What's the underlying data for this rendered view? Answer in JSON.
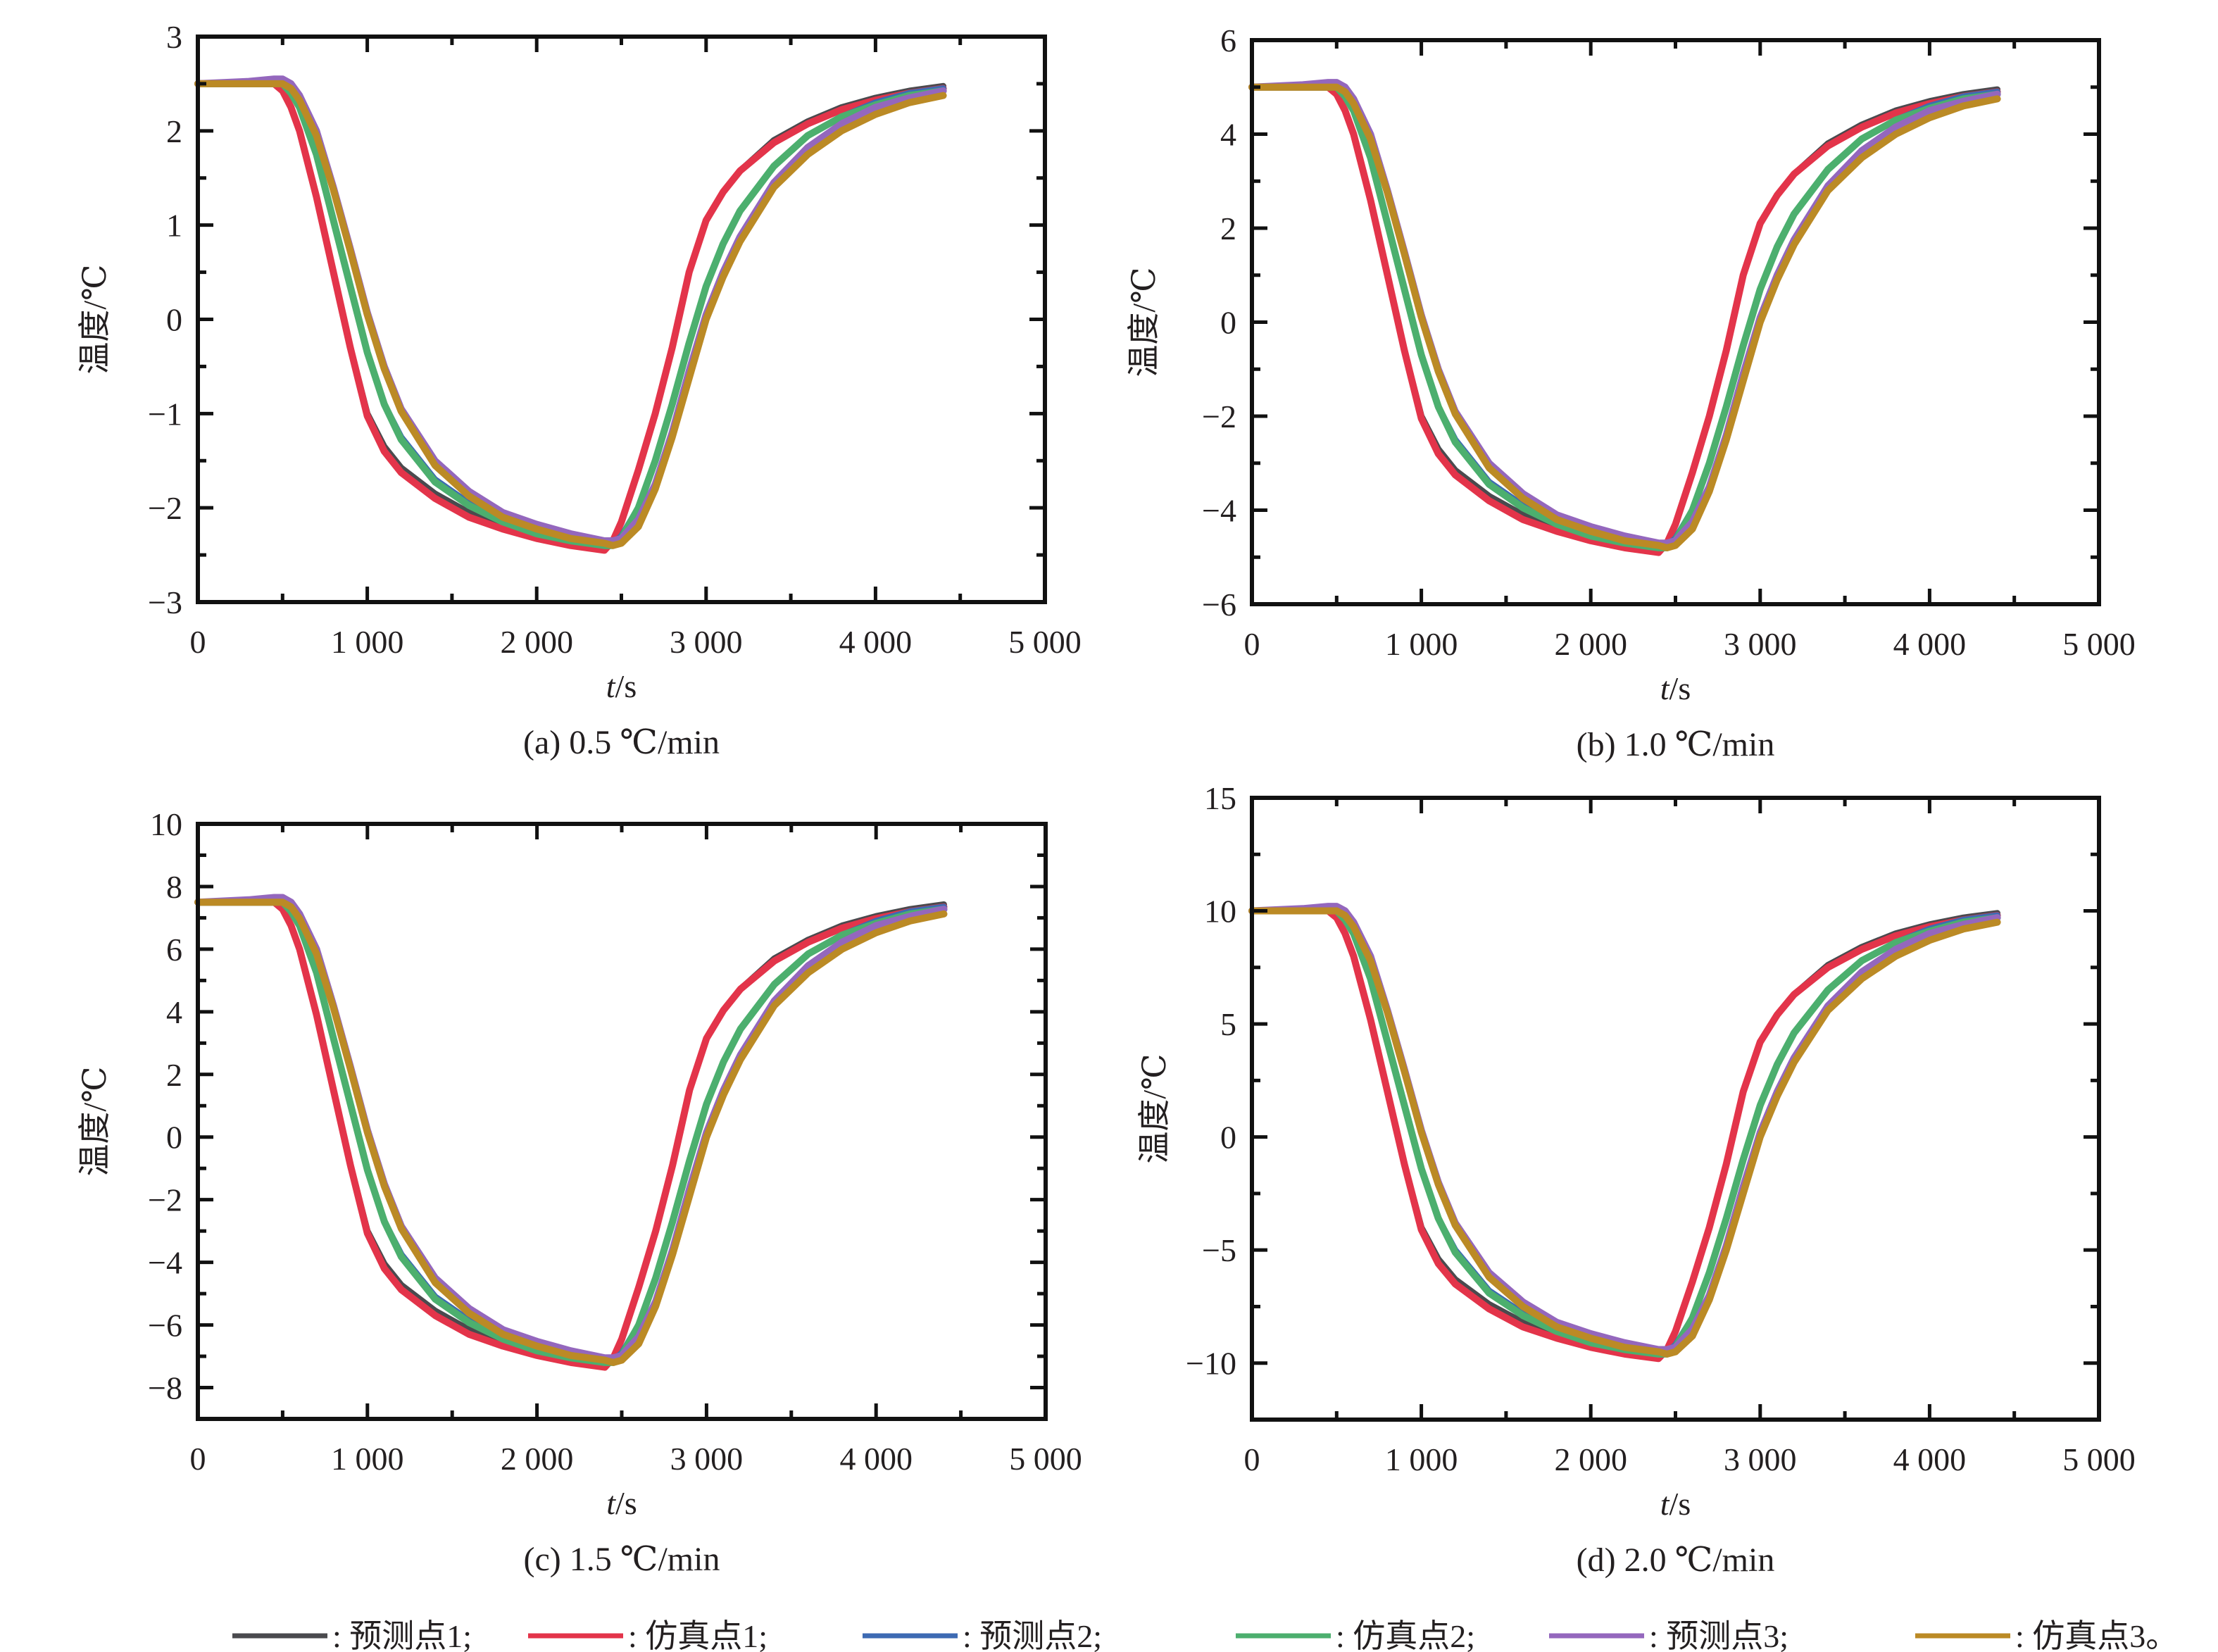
{
  "chart_data": {
    "type": "line",
    "legend": {
      "placement": "bottom",
      "entries": [
        {
          "key": "pred1",
          "label": "预测点1;",
          "color": "#4a4a4e"
        },
        {
          "key": "sim1",
          "label": "仿真点1;",
          "color": "#e3344a"
        },
        {
          "key": "pred2",
          "label": "预测点2;",
          "color": "#3d6ab3"
        },
        {
          "key": "sim2",
          "label": "仿真点2;",
          "color": "#4caf6e"
        },
        {
          "key": "pred3",
          "label": "预测点3;",
          "color": "#9467bd"
        },
        {
          "key": "sim3",
          "label": "仿真点3。",
          "color": "#bb8a25"
        }
      ],
      "separator": ":"
    },
    "panels": [
      {
        "caption": "(a) 0.5 ℃/min",
        "xlabel_italic": "t",
        "xlabel_unit": "/s",
        "ylabel": "温度/℃",
        "xlim": [
          0,
          5000
        ],
        "ylim": [
          -3,
          3
        ],
        "xticks": [
          0,
          1000,
          2000,
          3000,
          4000,
          5000
        ],
        "xtick_labels": [
          "0",
          "1 000",
          "2 000",
          "3 000",
          "4 000",
          "5 000"
        ],
        "yticks": [
          -3,
          -2,
          -1,
          0,
          1,
          2,
          3
        ],
        "ytick_labels": [
          "−3",
          "−2",
          "−1",
          "0",
          "1",
          "2",
          "3"
        ],
        "amplitude": 2.5
      },
      {
        "caption": "(b) 1.0 ℃/min",
        "xlabel_italic": "t",
        "xlabel_unit": "/s",
        "ylabel": "温度/℃",
        "xlim": [
          0,
          5000
        ],
        "ylim": [
          -6,
          6
        ],
        "xticks": [
          0,
          1000,
          2000,
          3000,
          4000,
          5000
        ],
        "xtick_labels": [
          "0",
          "1 000",
          "2 000",
          "3 000",
          "4 000",
          "5 000"
        ],
        "yticks": [
          -6,
          -4,
          -2,
          0,
          2,
          4,
          6
        ],
        "ytick_labels": [
          "−6",
          "−4",
          "−2",
          "0",
          "2",
          "4",
          "6"
        ],
        "amplitude": 5.0
      },
      {
        "caption": "(c) 1.5 ℃/min",
        "xlabel_italic": "t",
        "xlabel_unit": "/s",
        "ylabel": "温度/℃",
        "xlim": [
          0,
          5000
        ],
        "ylim": [
          -9,
          10
        ],
        "xticks": [
          0,
          1000,
          2000,
          3000,
          4000,
          5000
        ],
        "xtick_labels": [
          "0",
          "1 000",
          "2 000",
          "3 000",
          "4 000",
          "5 000"
        ],
        "yticks": [
          -8,
          -6,
          -4,
          -2,
          0,
          2,
          4,
          6,
          8,
          10
        ],
        "ytick_labels": [
          "−8",
          "−6",
          "−4",
          "−2",
          "0",
          "2",
          "4",
          "6",
          "8",
          "10"
        ],
        "amplitude": 7.5
      },
      {
        "caption": "(d) 2.0 ℃/min",
        "xlabel_italic": "t",
        "xlabel_unit": "/s",
        "ylabel": "温度/℃",
        "xlim": [
          0,
          5000
        ],
        "ylim": [
          -12.5,
          15
        ],
        "xticks": [
          0,
          1000,
          2000,
          3000,
          4000,
          5000
        ],
        "xtick_labels": [
          "0",
          "1 000",
          "2 000",
          "3 000",
          "4 000",
          "5 000"
        ],
        "yticks": [
          -10,
          -5,
          0,
          5,
          10,
          15
        ],
        "ytick_labels": [
          "−10",
          "−5",
          "0",
          "5",
          "10",
          "15"
        ],
        "amplitude": 10.0
      }
    ],
    "x": [
      0,
      300,
      450,
      500,
      550,
      600,
      700,
      800,
      900,
      1000,
      1100,
      1200,
      1400,
      1600,
      1800,
      2000,
      2200,
      2400,
      2450,
      2500,
      2600,
      2700,
      2800,
      2900,
      3000,
      3100,
      3200,
      3400,
      3600,
      3800,
      4000,
      4200,
      4400
    ],
    "normalized_series_note": "values are fraction of each panel's amplitude",
    "series": [
      {
        "key": "pred1",
        "values": [
          1.0,
          1.0,
          1.0,
          0.97,
          0.9,
          0.8,
          0.52,
          0.2,
          -0.12,
          -0.4,
          -0.54,
          -0.63,
          -0.74,
          -0.82,
          -0.88,
          -0.92,
          -0.95,
          -0.97,
          -0.94,
          -0.86,
          -0.64,
          -0.4,
          -0.12,
          0.2,
          0.42,
          0.54,
          0.63,
          0.76,
          0.84,
          0.9,
          0.94,
          0.97,
          0.99
        ]
      },
      {
        "key": "sim1",
        "values": [
          1.0,
          1.0,
          1.0,
          0.97,
          0.9,
          0.8,
          0.52,
          0.2,
          -0.12,
          -0.41,
          -0.56,
          -0.65,
          -0.76,
          -0.84,
          -0.89,
          -0.93,
          -0.96,
          -0.98,
          -0.94,
          -0.86,
          -0.64,
          -0.4,
          -0.12,
          0.2,
          0.42,
          0.54,
          0.63,
          0.75,
          0.83,
          0.89,
          0.93,
          0.96,
          0.98
        ]
      },
      {
        "key": "pred2",
        "values": [
          1.0,
          1.0,
          1.0,
          1.0,
          0.96,
          0.9,
          0.7,
          0.42,
          0.14,
          -0.14,
          -0.36,
          -0.5,
          -0.68,
          -0.78,
          -0.85,
          -0.9,
          -0.93,
          -0.95,
          -0.95,
          -0.92,
          -0.8,
          -0.6,
          -0.36,
          -0.1,
          0.14,
          0.32,
          0.46,
          0.65,
          0.78,
          0.86,
          0.92,
          0.96,
          0.98
        ]
      },
      {
        "key": "sim2",
        "values": [
          1.0,
          1.0,
          1.0,
          1.0,
          0.96,
          0.9,
          0.7,
          0.42,
          0.14,
          -0.14,
          -0.36,
          -0.51,
          -0.69,
          -0.79,
          -0.86,
          -0.91,
          -0.94,
          -0.96,
          -0.96,
          -0.93,
          -0.8,
          -0.6,
          -0.36,
          -0.1,
          0.14,
          0.32,
          0.46,
          0.65,
          0.78,
          0.86,
          0.91,
          0.95,
          0.97
        ]
      },
      {
        "key": "pred3",
        "values": [
          1.0,
          1.01,
          1.02,
          1.02,
          1.0,
          0.95,
          0.8,
          0.56,
          0.3,
          0.03,
          -0.2,
          -0.38,
          -0.6,
          -0.73,
          -0.82,
          -0.87,
          -0.91,
          -0.94,
          -0.94,
          -0.93,
          -0.85,
          -0.7,
          -0.48,
          -0.22,
          0.02,
          0.2,
          0.35,
          0.58,
          0.73,
          0.83,
          0.9,
          0.94,
          0.97
        ]
      },
      {
        "key": "sim3",
        "values": [
          1.0,
          1.0,
          1.0,
          1.0,
          0.98,
          0.93,
          0.78,
          0.55,
          0.29,
          0.02,
          -0.21,
          -0.39,
          -0.62,
          -0.75,
          -0.84,
          -0.89,
          -0.93,
          -0.95,
          -0.96,
          -0.95,
          -0.88,
          -0.72,
          -0.5,
          -0.25,
          0.0,
          0.18,
          0.33,
          0.56,
          0.7,
          0.8,
          0.87,
          0.92,
          0.95
        ]
      }
    ]
  }
}
